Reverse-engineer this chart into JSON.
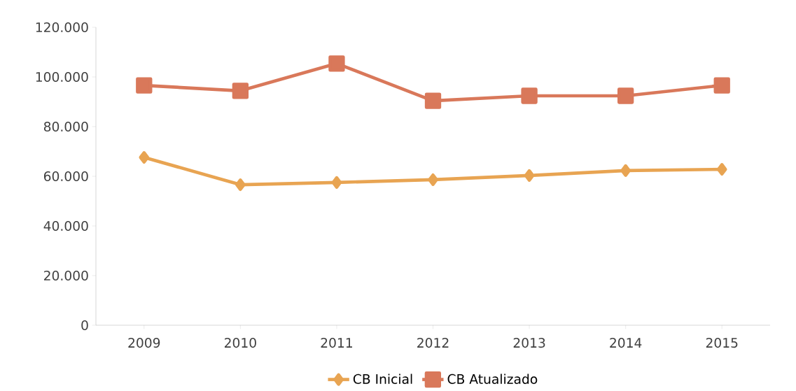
{
  "chart_data": {
    "type": "line",
    "categories": [
      "2009",
      "2010",
      "2011",
      "2012",
      "2013",
      "2014",
      "2015"
    ],
    "series": [
      {
        "name": "CB Inicial",
        "color": "#e8a452",
        "marker": "diamond",
        "values": [
          67600,
          56600,
          57500,
          58600,
          60300,
          62300,
          62800
        ]
      },
      {
        "name": "CB Atualizado",
        "color": "#d9785a",
        "marker": "square",
        "values": [
          96600,
          94400,
          105400,
          90400,
          92400,
          92400,
          96600
        ]
      }
    ],
    "ylim": [
      0,
      120000
    ],
    "yticks": [
      {
        "value": 0,
        "label": "0"
      },
      {
        "value": 20000,
        "label": "20.000"
      },
      {
        "value": 40000,
        "label": "40.000"
      },
      {
        "value": 60000,
        "label": "60.000"
      },
      {
        "value": 80000,
        "label": "80.000"
      },
      {
        "value": 100000,
        "label": "100.000"
      },
      {
        "value": 120000,
        "label": "120.000"
      }
    ],
    "grid": false,
    "legend": "bottom",
    "line_style": "solid"
  }
}
